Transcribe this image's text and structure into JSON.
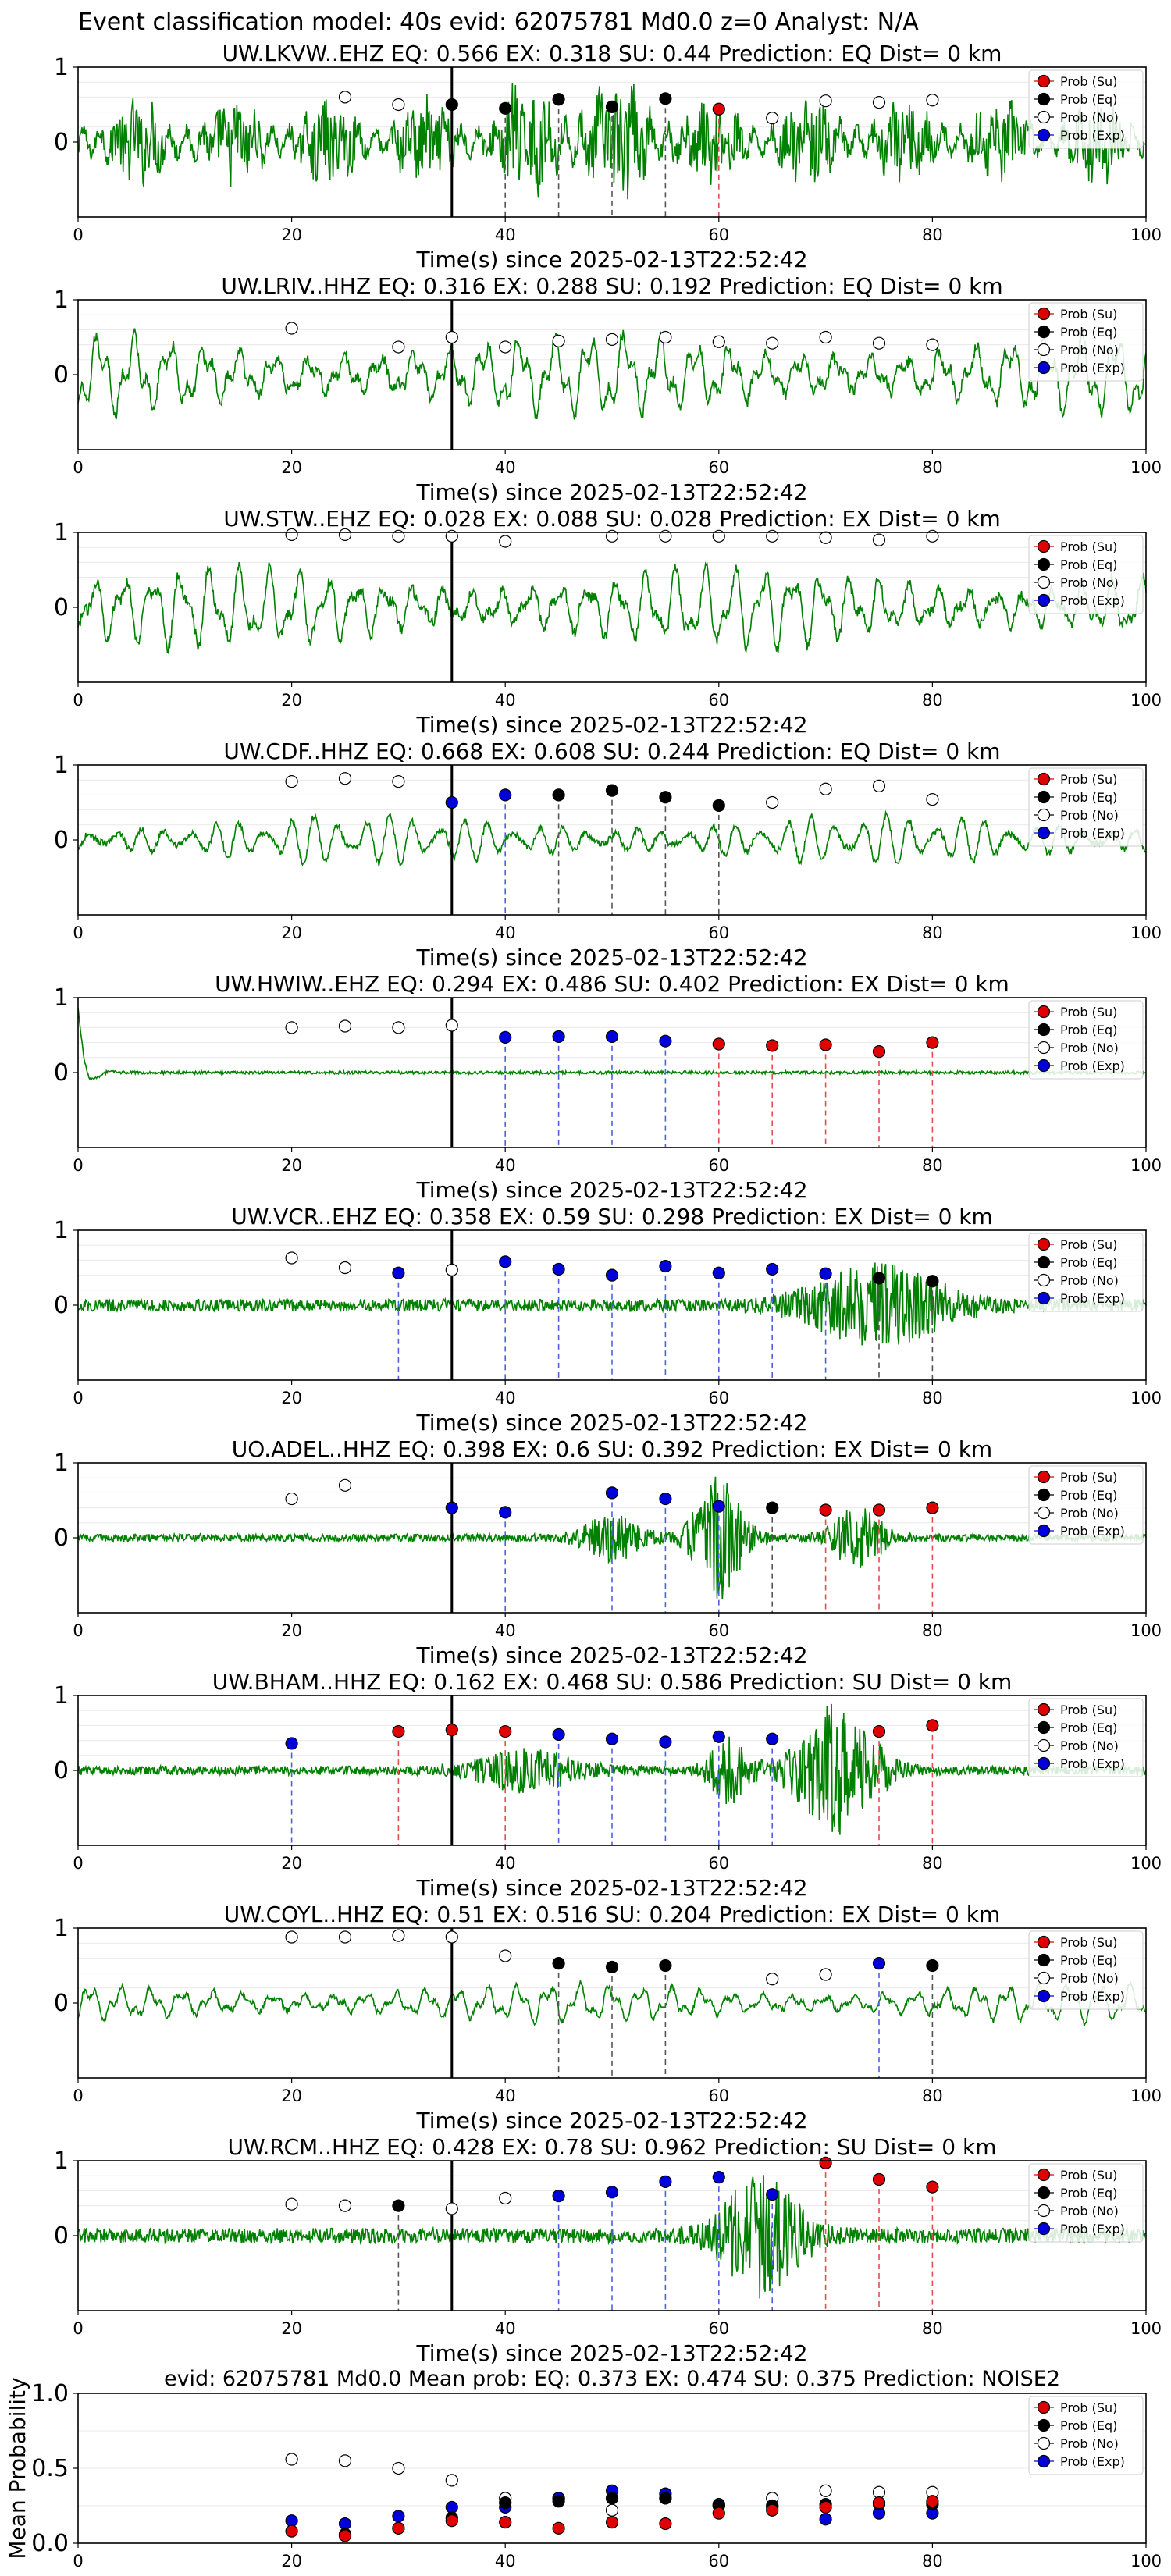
{
  "header": "Event classification model: 40s evid: 62075781 Md0.0 z=0 Analyst: N/A",
  "legend_labels": [
    "Prob (Su)",
    "Prob (Eq)",
    "Prob (No)",
    "Prob (Exp)"
  ],
  "colors": {
    "su": "#e00000",
    "eq": "#000000",
    "no": "#ffffff",
    "exp": "#0000dd",
    "trace": "#008000",
    "arrival": "#000000"
  },
  "chart_data": [
    {
      "type": "line",
      "title": "UW.LKVW..EHZ   EQ: 0.566  EX: 0.318  SU: 0.44   Prediction: EQ    Dist= 0 km",
      "xlabel": "Time(s) since 2025-02-13T22:52:42",
      "xlim": [
        0,
        100
      ],
      "ylim": [
        -1,
        1
      ],
      "xticks": [
        "0",
        "20",
        "40",
        "60",
        "80",
        "100"
      ],
      "yticks": [
        "0",
        "1"
      ],
      "trace_style": "noisy",
      "trace_amplitude": 0.5,
      "arrival_time": 35,
      "points": [
        {
          "x": 25,
          "y": 0.6,
          "cls": "no"
        },
        {
          "x": 30,
          "y": 0.5,
          "cls": "no"
        },
        {
          "x": 35,
          "y": 0.5,
          "cls": "eq"
        },
        {
          "x": 40,
          "y": 0.45,
          "cls": "eq"
        },
        {
          "x": 45,
          "y": 0.57,
          "cls": "eq"
        },
        {
          "x": 50,
          "y": 0.47,
          "cls": "eq"
        },
        {
          "x": 55,
          "y": 0.58,
          "cls": "eq"
        },
        {
          "x": 60,
          "y": 0.44,
          "cls": "su"
        },
        {
          "x": 65,
          "y": 0.32,
          "cls": "no"
        },
        {
          "x": 70,
          "y": 0.55,
          "cls": "no"
        },
        {
          "x": 75,
          "y": 0.53,
          "cls": "no"
        },
        {
          "x": 80,
          "y": 0.56,
          "cls": "no"
        }
      ]
    },
    {
      "type": "line",
      "title": "UW.LRIV..HHZ   EQ: 0.316  EX: 0.288  SU: 0.192   Prediction: EQ    Dist= 0 km",
      "xlabel": "Time(s) since 2025-02-13T22:52:42",
      "xlim": [
        0,
        100
      ],
      "ylim": [
        -1,
        1
      ],
      "xticks": [
        "0",
        "20",
        "40",
        "60",
        "80",
        "100"
      ],
      "yticks": [
        "0",
        "1"
      ],
      "trace_style": "oscillating",
      "trace_amplitude": 0.6,
      "arrival_time": 35,
      "points": [
        {
          "x": 20,
          "y": 0.62,
          "cls": "no"
        },
        {
          "x": 30,
          "y": 0.37,
          "cls": "no"
        },
        {
          "x": 35,
          "y": 0.5,
          "cls": "no"
        },
        {
          "x": 40,
          "y": 0.37,
          "cls": "no"
        },
        {
          "x": 45,
          "y": 0.45,
          "cls": "no"
        },
        {
          "x": 50,
          "y": 0.47,
          "cls": "no"
        },
        {
          "x": 55,
          "y": 0.5,
          "cls": "no"
        },
        {
          "x": 60,
          "y": 0.44,
          "cls": "no"
        },
        {
          "x": 65,
          "y": 0.42,
          "cls": "no"
        },
        {
          "x": 70,
          "y": 0.5,
          "cls": "no"
        },
        {
          "x": 75,
          "y": 0.42,
          "cls": "no"
        },
        {
          "x": 80,
          "y": 0.4,
          "cls": "no"
        }
      ]
    },
    {
      "type": "line",
      "title": "UW.STW..EHZ   EQ: 0.028  EX: 0.088  SU: 0.028   Prediction: EX    Dist= 0 km",
      "xlabel": "Time(s) since 2025-02-13T22:52:42",
      "xlim": [
        0,
        100
      ],
      "ylim": [
        -1,
        1
      ],
      "xticks": [
        "0",
        "20",
        "40",
        "60",
        "80",
        "100"
      ],
      "yticks": [
        "0",
        "1"
      ],
      "trace_style": "oscillating",
      "trace_amplitude": 0.6,
      "arrival_time": 35,
      "points": [
        {
          "x": 20,
          "y": 0.97,
          "cls": "no"
        },
        {
          "x": 25,
          "y": 0.97,
          "cls": "no"
        },
        {
          "x": 30,
          "y": 0.95,
          "cls": "no"
        },
        {
          "x": 35,
          "y": 0.95,
          "cls": "no"
        },
        {
          "x": 40,
          "y": 0.88,
          "cls": "no"
        },
        {
          "x": 50,
          "y": 0.95,
          "cls": "no"
        },
        {
          "x": 55,
          "y": 0.95,
          "cls": "no"
        },
        {
          "x": 60,
          "y": 0.95,
          "cls": "no"
        },
        {
          "x": 65,
          "y": 0.95,
          "cls": "no"
        },
        {
          "x": 70,
          "y": 0.93,
          "cls": "no"
        },
        {
          "x": 75,
          "y": 0.9,
          "cls": "no"
        },
        {
          "x": 80,
          "y": 0.95,
          "cls": "no"
        }
      ]
    },
    {
      "type": "line",
      "title": "UW.CDF..HHZ   EQ: 0.668  EX: 0.608  SU: 0.244   Prediction: EQ    Dist= 0 km",
      "xlabel": "Time(s) since 2025-02-13T22:52:42",
      "xlim": [
        0,
        100
      ],
      "ylim": [
        -1,
        1
      ],
      "xticks": [
        "0",
        "20",
        "40",
        "60",
        "80",
        "100"
      ],
      "yticks": [
        "0",
        "1"
      ],
      "trace_style": "oscillating",
      "trace_amplitude": 0.35,
      "arrival_time": 35,
      "points": [
        {
          "x": 20,
          "y": 0.78,
          "cls": "no"
        },
        {
          "x": 25,
          "y": 0.82,
          "cls": "no"
        },
        {
          "x": 30,
          "y": 0.78,
          "cls": "no"
        },
        {
          "x": 35,
          "y": 0.5,
          "cls": "exp"
        },
        {
          "x": 40,
          "y": 0.6,
          "cls": "exp"
        },
        {
          "x": 45,
          "y": 0.6,
          "cls": "eq"
        },
        {
          "x": 50,
          "y": 0.66,
          "cls": "eq"
        },
        {
          "x": 55,
          "y": 0.57,
          "cls": "eq"
        },
        {
          "x": 60,
          "y": 0.46,
          "cls": "eq"
        },
        {
          "x": 65,
          "y": 0.5,
          "cls": "no"
        },
        {
          "x": 70,
          "y": 0.68,
          "cls": "no"
        },
        {
          "x": 75,
          "y": 0.72,
          "cls": "no"
        },
        {
          "x": 80,
          "y": 0.54,
          "cls": "no"
        }
      ]
    },
    {
      "type": "line",
      "title": "UW.HWIW..EHZ   EQ: 0.294  EX: 0.486  SU: 0.402   Prediction: EX    Dist= 0 km",
      "xlabel": "Time(s) since 2025-02-13T22:52:42",
      "xlim": [
        0,
        100
      ],
      "ylim": [
        -1,
        1
      ],
      "xticks": [
        "0",
        "20",
        "40",
        "60",
        "80",
        "100"
      ],
      "yticks": [
        "0",
        "1"
      ],
      "trace_style": "flat",
      "trace_amplitude": 0.02,
      "arrival_time": 35,
      "points": [
        {
          "x": 20,
          "y": 0.6,
          "cls": "no"
        },
        {
          "x": 25,
          "y": 0.62,
          "cls": "no"
        },
        {
          "x": 30,
          "y": 0.6,
          "cls": "no"
        },
        {
          "x": 35,
          "y": 0.63,
          "cls": "no"
        },
        {
          "x": 40,
          "y": 0.47,
          "cls": "exp"
        },
        {
          "x": 45,
          "y": 0.48,
          "cls": "exp"
        },
        {
          "x": 50,
          "y": 0.48,
          "cls": "exp"
        },
        {
          "x": 55,
          "y": 0.42,
          "cls": "exp"
        },
        {
          "x": 60,
          "y": 0.38,
          "cls": "su"
        },
        {
          "x": 65,
          "y": 0.36,
          "cls": "su"
        },
        {
          "x": 70,
          "y": 0.37,
          "cls": "su"
        },
        {
          "x": 75,
          "y": 0.28,
          "cls": "su"
        },
        {
          "x": 80,
          "y": 0.4,
          "cls": "su"
        }
      ]
    },
    {
      "type": "line",
      "title": "UW.VCR..EHZ   EQ: 0.358  EX: 0.59  SU: 0.298   Prediction: EX    Dist= 0 km",
      "xlabel": "Time(s) since 2025-02-13T22:52:42",
      "xlim": [
        0,
        100
      ],
      "ylim": [
        -1,
        1
      ],
      "xticks": [
        "0",
        "20",
        "40",
        "60",
        "80",
        "100"
      ],
      "yticks": [
        "0",
        "1"
      ],
      "trace_style": "burst",
      "trace_amplitude": 0.08,
      "arrival_time": 35,
      "bursts": [
        {
          "center": 75,
          "width": 14,
          "amp": 0.5
        }
      ],
      "points": [
        {
          "x": 20,
          "y": 0.63,
          "cls": "no"
        },
        {
          "x": 25,
          "y": 0.5,
          "cls": "no"
        },
        {
          "x": 30,
          "y": 0.43,
          "cls": "exp"
        },
        {
          "x": 35,
          "y": 0.47,
          "cls": "no"
        },
        {
          "x": 40,
          "y": 0.58,
          "cls": "exp"
        },
        {
          "x": 45,
          "y": 0.48,
          "cls": "exp"
        },
        {
          "x": 50,
          "y": 0.4,
          "cls": "exp"
        },
        {
          "x": 55,
          "y": 0.52,
          "cls": "exp"
        },
        {
          "x": 60,
          "y": 0.43,
          "cls": "exp"
        },
        {
          "x": 65,
          "y": 0.48,
          "cls": "exp"
        },
        {
          "x": 70,
          "y": 0.42,
          "cls": "exp"
        },
        {
          "x": 75,
          "y": 0.36,
          "cls": "eq"
        },
        {
          "x": 80,
          "y": 0.32,
          "cls": "eq"
        }
      ]
    },
    {
      "type": "line",
      "title": "UO.ADEL..HHZ   EQ: 0.398  EX: 0.6  SU: 0.392   Prediction: EX    Dist= 0 km",
      "xlabel": "Time(s) since 2025-02-13T22:52:42",
      "xlim": [
        0,
        100
      ],
      "ylim": [
        -1,
        1
      ],
      "xticks": [
        "0",
        "20",
        "40",
        "60",
        "80",
        "100"
      ],
      "yticks": [
        "0",
        "1"
      ],
      "trace_style": "burst",
      "trace_amplitude": 0.05,
      "arrival_time": 35,
      "bursts": [
        {
          "center": 50,
          "width": 6,
          "amp": 0.28
        },
        {
          "center": 60,
          "width": 5,
          "amp": 0.8
        },
        {
          "center": 73,
          "width": 5,
          "amp": 0.4
        }
      ],
      "points": [
        {
          "x": 20,
          "y": 0.52,
          "cls": "no"
        },
        {
          "x": 25,
          "y": 0.7,
          "cls": "no"
        },
        {
          "x": 35,
          "y": 0.4,
          "cls": "exp"
        },
        {
          "x": 40,
          "y": 0.34,
          "cls": "exp"
        },
        {
          "x": 50,
          "y": 0.6,
          "cls": "exp"
        },
        {
          "x": 55,
          "y": 0.52,
          "cls": "exp"
        },
        {
          "x": 60,
          "y": 0.42,
          "cls": "exp"
        },
        {
          "x": 65,
          "y": 0.4,
          "cls": "eq"
        },
        {
          "x": 70,
          "y": 0.37,
          "cls": "su"
        },
        {
          "x": 75,
          "y": 0.37,
          "cls": "su"
        },
        {
          "x": 80,
          "y": 0.4,
          "cls": "su"
        }
      ]
    },
    {
      "type": "line",
      "title": "UW.BHAM..HHZ   EQ: 0.162  EX: 0.468  SU: 0.586   Prediction: SU    Dist= 0 km",
      "xlabel": "Time(s) since 2025-02-13T22:52:42",
      "xlim": [
        0,
        100
      ],
      "ylim": [
        -1,
        1
      ],
      "xticks": [
        "0",
        "20",
        "40",
        "60",
        "80",
        "100"
      ],
      "yticks": [
        "0",
        "1"
      ],
      "trace_style": "burst",
      "trace_amplitude": 0.06,
      "arrival_time": 35,
      "bursts": [
        {
          "center": 42,
          "width": 10,
          "amp": 0.25
        },
        {
          "center": 61,
          "width": 4,
          "amp": 0.4
        },
        {
          "center": 71,
          "width": 8,
          "amp": 0.85
        }
      ],
      "points": [
        {
          "x": 20,
          "y": 0.36,
          "cls": "exp"
        },
        {
          "x": 30,
          "y": 0.52,
          "cls": "su"
        },
        {
          "x": 35,
          "y": 0.54,
          "cls": "su"
        },
        {
          "x": 40,
          "y": 0.52,
          "cls": "su"
        },
        {
          "x": 45,
          "y": 0.48,
          "cls": "exp"
        },
        {
          "x": 50,
          "y": 0.42,
          "cls": "exp"
        },
        {
          "x": 55,
          "y": 0.38,
          "cls": "exp"
        },
        {
          "x": 60,
          "y": 0.45,
          "cls": "exp"
        },
        {
          "x": 65,
          "y": 0.42,
          "cls": "exp"
        },
        {
          "x": 75,
          "y": 0.52,
          "cls": "su"
        },
        {
          "x": 80,
          "y": 0.6,
          "cls": "su"
        }
      ]
    },
    {
      "type": "line",
      "title": "UW.COYL..HHZ   EQ: 0.51  EX: 0.516  SU: 0.204   Prediction: EX    Dist= 0 km",
      "xlabel": "Time(s) since 2025-02-13T22:52:42",
      "xlim": [
        0,
        100
      ],
      "ylim": [
        -1,
        1
      ],
      "xticks": [
        "0",
        "20",
        "40",
        "60",
        "80",
        "100"
      ],
      "yticks": [
        "0",
        "1"
      ],
      "trace_style": "oscillating",
      "trace_amplitude": 0.28,
      "arrival_time": 35,
      "points": [
        {
          "x": 20,
          "y": 0.88,
          "cls": "no"
        },
        {
          "x": 25,
          "y": 0.88,
          "cls": "no"
        },
        {
          "x": 30,
          "y": 0.9,
          "cls": "no"
        },
        {
          "x": 35,
          "y": 0.88,
          "cls": "no"
        },
        {
          "x": 40,
          "y": 0.63,
          "cls": "no"
        },
        {
          "x": 45,
          "y": 0.53,
          "cls": "eq"
        },
        {
          "x": 50,
          "y": 0.48,
          "cls": "eq"
        },
        {
          "x": 55,
          "y": 0.5,
          "cls": "eq"
        },
        {
          "x": 65,
          "y": 0.32,
          "cls": "no"
        },
        {
          "x": 70,
          "y": 0.38,
          "cls": "no"
        },
        {
          "x": 75,
          "y": 0.53,
          "cls": "exp"
        },
        {
          "x": 80,
          "y": 0.5,
          "cls": "eq"
        }
      ]
    },
    {
      "type": "line",
      "title": "UW.RCM..HHZ   EQ: 0.428  EX: 0.78  SU: 0.962   Prediction: SU    Dist= 0 km",
      "xlabel": "Time(s) since 2025-02-13T22:52:42",
      "xlim": [
        0,
        100
      ],
      "ylim": [
        -1,
        1
      ],
      "xticks": [
        "0",
        "20",
        "40",
        "60",
        "80",
        "100"
      ],
      "yticks": [
        "0",
        "1"
      ],
      "trace_style": "burst",
      "trace_amplitude": 0.1,
      "arrival_time": 35,
      "bursts": [
        {
          "center": 64,
          "width": 8,
          "amp": 0.75
        }
      ],
      "points": [
        {
          "x": 20,
          "y": 0.42,
          "cls": "no"
        },
        {
          "x": 25,
          "y": 0.4,
          "cls": "no"
        },
        {
          "x": 30,
          "y": 0.4,
          "cls": "eq"
        },
        {
          "x": 35,
          "y": 0.36,
          "cls": "no"
        },
        {
          "x": 40,
          "y": 0.5,
          "cls": "no"
        },
        {
          "x": 45,
          "y": 0.53,
          "cls": "exp"
        },
        {
          "x": 50,
          "y": 0.58,
          "cls": "exp"
        },
        {
          "x": 55,
          "y": 0.72,
          "cls": "exp"
        },
        {
          "x": 60,
          "y": 0.78,
          "cls": "exp"
        },
        {
          "x": 65,
          "y": 0.55,
          "cls": "exp"
        },
        {
          "x": 70,
          "y": 0.97,
          "cls": "su"
        },
        {
          "x": 75,
          "y": 0.75,
          "cls": "su"
        },
        {
          "x": 80,
          "y": 0.65,
          "cls": "su"
        }
      ]
    },
    {
      "type": "scatter",
      "title": "evid: 62075781  Md0.0   Mean prob:   EQ: 0.373  EX: 0.474  SU: 0.375   Prediction: NOISE2",
      "xlabel": "",
      "ylabel": "Mean Probability",
      "xlim": [
        0,
        100
      ],
      "ylim": [
        0,
        1
      ],
      "xticks": [
        "0",
        "20",
        "40",
        "60",
        "80",
        "100"
      ],
      "yticks": [
        "0.0",
        "0.5",
        "1.0"
      ],
      "series": [
        {
          "cls": "no",
          "x": [
            20,
            25,
            30,
            35,
            40,
            45,
            50,
            55,
            60,
            65,
            70,
            75,
            80
          ],
          "y": [
            0.56,
            0.55,
            0.5,
            0.42,
            0.3,
            0.3,
            0.22,
            0.3,
            0.25,
            0.3,
            0.35,
            0.34,
            0.34
          ]
        },
        {
          "cls": "exp",
          "x": [
            20,
            25,
            30,
            35,
            40,
            45,
            50,
            55,
            60,
            65,
            70,
            75,
            80
          ],
          "y": [
            0.15,
            0.13,
            0.18,
            0.24,
            0.24,
            0.3,
            0.35,
            0.33,
            0.26,
            0.24,
            0.16,
            0.2,
            0.2
          ]
        },
        {
          "cls": "eq",
          "x": [
            25,
            30,
            35,
            40,
            45,
            50,
            55,
            60,
            65,
            70,
            75,
            80
          ],
          "y": [
            0.06,
            0.1,
            0.17,
            0.27,
            0.28,
            0.3,
            0.3,
            0.25,
            0.25,
            0.26,
            0.26,
            0.26
          ]
        },
        {
          "cls": "su",
          "x": [
            20,
            25,
            30,
            35,
            40,
            45,
            50,
            55,
            60,
            65,
            70,
            75,
            80
          ],
          "y": [
            0.08,
            0.05,
            0.1,
            0.15,
            0.14,
            0.1,
            0.14,
            0.13,
            0.2,
            0.22,
            0.24,
            0.27,
            0.28
          ]
        }
      ]
    }
  ]
}
